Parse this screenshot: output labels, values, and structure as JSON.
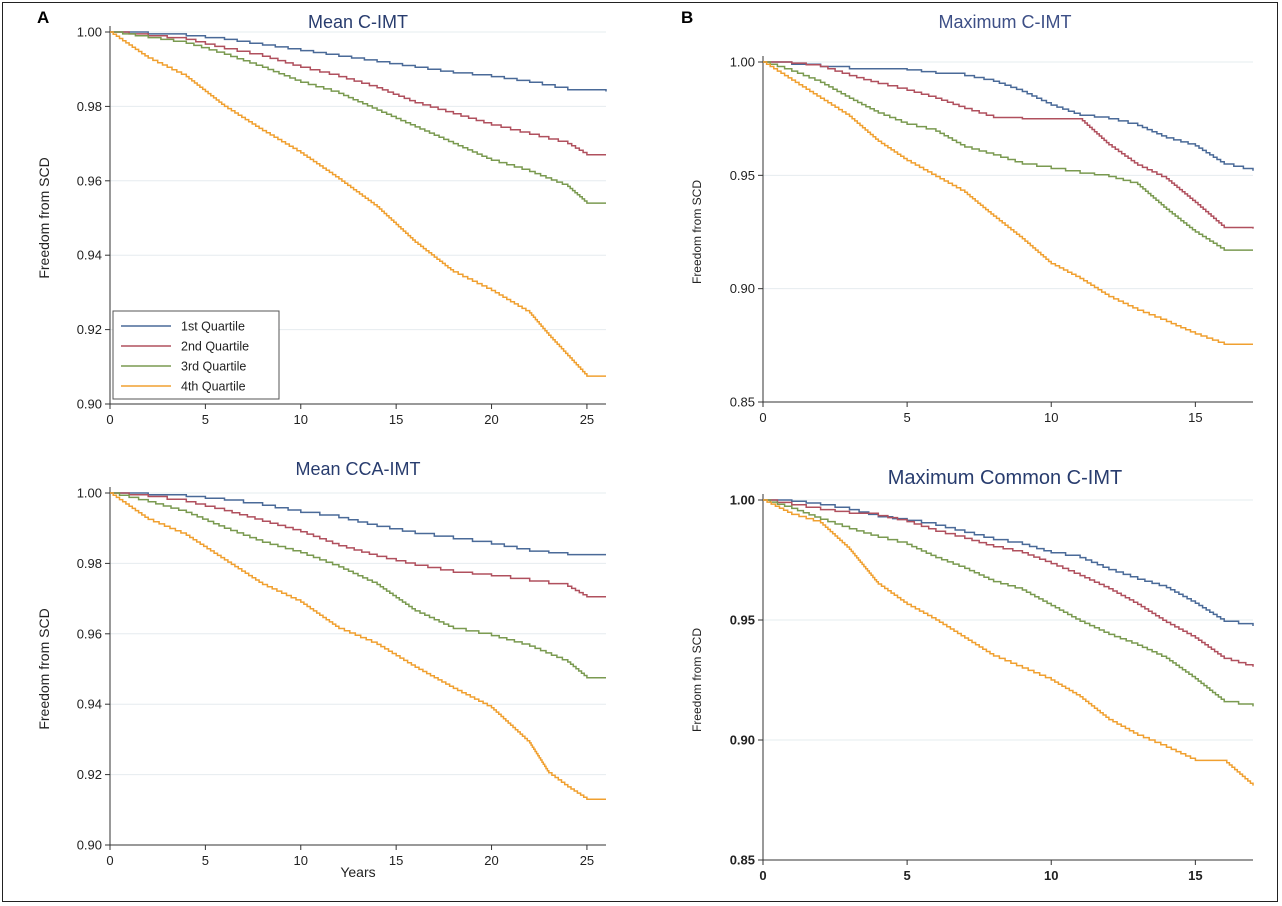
{
  "panel_labels": {
    "a": "A",
    "b": "B"
  },
  "chart_data": [
    {
      "id": "mean-cimt",
      "type": "line",
      "title": "Mean C-IMT",
      "xlabel": "",
      "ylabel": "Freedom from SCD",
      "xlim": [
        0,
        26
      ],
      "ylim": [
        0.9,
        1.0
      ],
      "xticks": [
        0,
        5,
        10,
        15,
        20,
        25
      ],
      "xtick_labels": [
        "0",
        "5",
        "10",
        "15",
        "20",
        "25"
      ],
      "yticks": [
        0.9,
        0.92,
        0.94,
        0.96,
        0.98,
        1.0
      ],
      "ytick_labels": [
        "0.90",
        "0.92",
        "0.94",
        "0.96",
        "0.98",
        "1.00"
      ],
      "grid": true,
      "legend": "bottom-left",
      "series": [
        {
          "name": "1st Quartile",
          "color": "#4a6a98",
          "x": [
            0,
            2,
            4,
            6,
            8,
            10,
            12,
            14,
            16,
            18,
            20,
            22,
            24,
            26
          ],
          "y": [
            1.0,
            0.9995,
            0.999,
            0.998,
            0.9965,
            0.995,
            0.9935,
            0.992,
            0.9905,
            0.989,
            0.988,
            0.9865,
            0.9845,
            0.984
          ]
        },
        {
          "name": "2nd Quartile",
          "color": "#b0505e",
          "x": [
            0,
            2,
            4,
            6,
            8,
            10,
            12,
            14,
            16,
            18,
            20,
            22,
            24,
            25,
            26
          ],
          "y": [
            1.0,
            0.999,
            0.998,
            0.9955,
            0.9935,
            0.9905,
            0.988,
            0.985,
            0.981,
            0.978,
            0.975,
            0.9725,
            0.97,
            0.967,
            0.967
          ]
        },
        {
          "name": "3rd Quartile",
          "color": "#7a9a50",
          "x": [
            0,
            2,
            4,
            6,
            8,
            10,
            12,
            14,
            16,
            18,
            20,
            22,
            24,
            25,
            26
          ],
          "y": [
            1.0,
            0.9985,
            0.997,
            0.994,
            0.9905,
            0.9865,
            0.9835,
            0.979,
            0.9745,
            0.97,
            0.9655,
            0.9625,
            0.9585,
            0.954,
            0.954
          ]
        },
        {
          "name": "4th Quartile",
          "color": "#f0a030",
          "x": [
            0,
            2,
            4,
            6,
            8,
            10,
            12,
            14,
            16,
            18,
            20,
            22,
            23,
            24,
            25,
            26
          ],
          "y": [
            1.0,
            0.993,
            0.988,
            0.98,
            0.9735,
            0.9675,
            0.9605,
            0.953,
            0.9435,
            0.9355,
            0.9305,
            0.9245,
            0.9185,
            0.913,
            0.9075,
            0.9075
          ]
        }
      ]
    },
    {
      "id": "max-cimt",
      "type": "line",
      "title": "Maximum C-IMT",
      "xlabel": "",
      "ylabel": "Freedom from SCD",
      "xlim": [
        0,
        17
      ],
      "ylim": [
        0.85,
        1.0
      ],
      "xticks": [
        0,
        5,
        10,
        15
      ],
      "xtick_labels": [
        "0",
        "5",
        "10",
        "15"
      ],
      "yticks": [
        0.85,
        0.9,
        0.95,
        1.0
      ],
      "ytick_labels": [
        "0.85",
        "0.90",
        "0.95",
        "1.00"
      ],
      "grid": true,
      "series": [
        {
          "name": "1st Quartile",
          "color": "#4a6a98",
          "x": [
            0,
            1,
            2,
            3,
            4,
            5,
            6,
            7,
            8,
            9,
            10,
            11,
            12,
            13,
            14,
            15,
            16,
            17
          ],
          "y": [
            1.0,
            0.999,
            0.998,
            0.997,
            0.997,
            0.9965,
            0.995,
            0.994,
            0.9915,
            0.987,
            0.981,
            0.9765,
            0.975,
            0.972,
            0.9665,
            0.963,
            0.955,
            0.952
          ]
        },
        {
          "name": "2nd Quartile",
          "color": "#b0505e",
          "x": [
            0,
            1,
            2,
            3,
            4,
            5,
            6,
            7,
            8,
            9,
            10,
            11,
            12,
            13,
            14,
            15,
            16,
            17
          ],
          "y": [
            1.0,
            0.9995,
            0.998,
            0.994,
            0.9905,
            0.9875,
            0.984,
            0.9795,
            0.9755,
            0.975,
            0.975,
            0.975,
            0.9635,
            0.9545,
            0.9485,
            0.938,
            0.927,
            0.9265
          ]
        },
        {
          "name": "3rd Quartile",
          "color": "#7a9a50",
          "x": [
            0,
            1,
            2,
            3,
            4,
            5,
            6,
            7,
            8,
            9,
            10,
            11,
            12,
            13,
            14,
            15,
            16,
            17
          ],
          "y": [
            1.0,
            0.996,
            0.991,
            0.984,
            0.9775,
            0.9725,
            0.9695,
            0.9625,
            0.959,
            0.955,
            0.953,
            0.951,
            0.9495,
            0.946,
            0.935,
            0.925,
            0.917,
            0.917
          ]
        },
        {
          "name": "4th Quartile",
          "color": "#f0a030",
          "x": [
            0,
            1,
            2,
            3,
            4,
            5,
            6,
            7,
            8,
            9,
            10,
            11,
            12,
            13,
            14,
            15,
            16,
            17
          ],
          "y": [
            1.0,
            0.992,
            0.984,
            0.976,
            0.965,
            0.9565,
            0.9495,
            0.9425,
            0.932,
            0.922,
            0.911,
            0.9045,
            0.8965,
            0.8905,
            0.8855,
            0.88,
            0.8755,
            0.8755
          ]
        }
      ]
    },
    {
      "id": "mean-cca-imt",
      "type": "line",
      "title": "Mean CCA-IMT",
      "xlabel": "Years",
      "ylabel": "Freedom from SCD",
      "xlim": [
        0,
        26
      ],
      "ylim": [
        0.9,
        1.0
      ],
      "xticks": [
        0,
        5,
        10,
        15,
        20,
        25
      ],
      "xtick_labels": [
        "0",
        "5",
        "10",
        "15",
        "20",
        "25"
      ],
      "yticks": [
        0.9,
        0.92,
        0.94,
        0.96,
        0.98,
        1.0
      ],
      "ytick_labels": [
        "0.90",
        "0.92",
        "0.94",
        "0.96",
        "0.98",
        "1.00"
      ],
      "grid": true,
      "series": [
        {
          "name": "1st Quartile",
          "color": "#4a6a98",
          "x": [
            0,
            2,
            4,
            6,
            8,
            10,
            12,
            14,
            16,
            18,
            20,
            22,
            24,
            26
          ],
          "y": [
            1.0,
            0.9995,
            0.999,
            0.998,
            0.9965,
            0.9945,
            0.993,
            0.9905,
            0.9885,
            0.987,
            0.9855,
            0.9835,
            0.9825,
            0.9825
          ]
        },
        {
          "name": "2nd Quartile",
          "color": "#b0505e",
          "x": [
            0,
            2,
            4,
            6,
            8,
            10,
            12,
            14,
            16,
            18,
            20,
            22,
            24,
            25,
            26
          ],
          "y": [
            1.0,
            0.999,
            0.9975,
            0.995,
            0.992,
            0.989,
            0.985,
            0.982,
            0.9795,
            0.9775,
            0.9765,
            0.975,
            0.9735,
            0.9705,
            0.9705
          ]
        },
        {
          "name": "3rd Quartile",
          "color": "#7a9a50",
          "x": [
            0,
            2,
            4,
            6,
            8,
            10,
            12,
            14,
            16,
            18,
            20,
            22,
            24,
            25,
            26
          ],
          "y": [
            1.0,
            0.9975,
            0.9945,
            0.99,
            0.986,
            0.983,
            0.979,
            0.974,
            0.9665,
            0.9615,
            0.9595,
            0.9565,
            0.952,
            0.9475,
            0.9475
          ]
        },
        {
          "name": "4th Quartile",
          "color": "#f0a030",
          "x": [
            0,
            2,
            4,
            6,
            8,
            10,
            12,
            14,
            16,
            18,
            20,
            22,
            23,
            24,
            25,
            26
          ],
          "y": [
            1.0,
            0.9925,
            0.988,
            0.981,
            0.974,
            0.969,
            0.9615,
            0.957,
            0.9505,
            0.9445,
            0.939,
            0.929,
            0.9205,
            0.9165,
            0.913,
            0.913
          ]
        }
      ]
    },
    {
      "id": "max-common-cimt",
      "type": "line",
      "title": "Maximum Common C-IMT",
      "xlabel": "",
      "ylabel": "Freedom from SCD",
      "xlim": [
        0,
        17
      ],
      "ylim": [
        0.85,
        1.0
      ],
      "xticks": [
        0,
        5,
        10,
        15
      ],
      "xtick_labels": [
        "0",
        "5",
        "10",
        "15"
      ],
      "yticks": [
        0.85,
        0.9,
        0.95,
        1.0
      ],
      "ytick_labels": [
        "0.85",
        "0.90",
        "0.95",
        "1.00"
      ],
      "grid": true,
      "series": [
        {
          "name": "1st Quartile",
          "color": "#4a6a98",
          "x": [
            0,
            1,
            2,
            3,
            4,
            5,
            6,
            7,
            8,
            9,
            10,
            11,
            12,
            13,
            14,
            15,
            16,
            17
          ],
          "y": [
            1.0,
            0.9995,
            0.998,
            0.996,
            0.993,
            0.9915,
            0.9895,
            0.9865,
            0.9835,
            0.9815,
            0.978,
            0.976,
            0.971,
            0.967,
            0.9635,
            0.957,
            0.9495,
            0.9475
          ]
        },
        {
          "name": "2nd Quartile",
          "color": "#b0505e",
          "x": [
            0,
            1,
            2,
            3,
            4,
            5,
            6,
            7,
            8,
            9,
            10,
            11,
            12,
            13,
            14,
            15,
            16,
            17
          ],
          "y": [
            1.0,
            0.998,
            0.996,
            0.9945,
            0.9935,
            0.991,
            0.987,
            0.984,
            0.9805,
            0.978,
            0.9735,
            0.9685,
            0.963,
            0.9565,
            0.949,
            0.9425,
            0.934,
            0.9305
          ]
        },
        {
          "name": "3rd Quartile",
          "color": "#7a9a50",
          "x": [
            0,
            1,
            2,
            3,
            4,
            5,
            6,
            7,
            8,
            9,
            10,
            11,
            12,
            13,
            14,
            15,
            16,
            17
          ],
          "y": [
            1.0,
            0.9965,
            0.992,
            0.988,
            0.9845,
            0.9815,
            0.976,
            0.9715,
            0.966,
            0.9625,
            0.956,
            0.9495,
            0.944,
            0.9395,
            0.934,
            0.9255,
            0.916,
            0.914
          ]
        },
        {
          "name": "4th Quartile",
          "color": "#f0a030",
          "x": [
            0,
            1,
            2,
            3,
            4,
            5,
            6,
            7,
            8,
            9,
            10,
            11,
            12,
            13,
            14,
            15,
            16,
            17
          ],
          "y": [
            1.0,
            0.994,
            0.9905,
            0.9795,
            0.965,
            0.9565,
            0.95,
            0.9425,
            0.935,
            0.93,
            0.925,
            0.918,
            0.9085,
            0.902,
            0.897,
            0.8915,
            0.8915,
            0.881
          ]
        }
      ]
    }
  ]
}
